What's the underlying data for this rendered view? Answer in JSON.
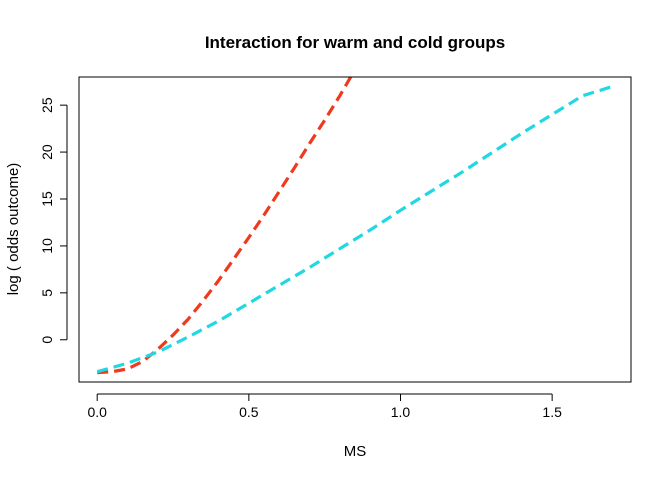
{
  "chart_data": {
    "type": "line",
    "title": "Interaction for warm and cold groups",
    "xlabel": "MS",
    "ylabel": "log ( odds outcome)",
    "xlim": [
      -0.06,
      1.76
    ],
    "ylim": [
      -4.5,
      28
    ],
    "xticks": [
      0.0,
      0.5,
      1.0,
      1.5
    ],
    "xtick_labels": [
      "0.0",
      "0.5",
      "1.0",
      "1.5"
    ],
    "yticks": [
      0,
      5,
      10,
      15,
      20,
      25
    ],
    "ytick_labels": [
      "0",
      "5",
      "10",
      "15",
      "20",
      "25"
    ],
    "grid": false,
    "legend": "none",
    "series": [
      {
        "color": "#EE3A1D",
        "dash": "dashed",
        "x": [
          0.0,
          0.05,
          0.1,
          0.15,
          0.2,
          0.25,
          0.3,
          0.35,
          0.4,
          0.45,
          0.5,
          0.55,
          0.6,
          0.65,
          0.7,
          0.75,
          0.8,
          0.85
        ],
        "y": [
          -3.5,
          -3.4,
          -3.1,
          -2.3,
          -1.0,
          0.5,
          2.2,
          4.2,
          6.3,
          8.6,
          10.9,
          13.3,
          15.8,
          18.3,
          20.9,
          23.4,
          26.0,
          28.8
        ]
      },
      {
        "color": "#1ED8E4",
        "dash": "dashed",
        "x": [
          0.0,
          0.1,
          0.2,
          0.3,
          0.4,
          0.5,
          0.6,
          0.7,
          0.8,
          0.9,
          1.0,
          1.1,
          1.2,
          1.3,
          1.4,
          1.5,
          1.6,
          1.7
        ],
        "y": [
          -3.4,
          -2.5,
          -1.3,
          0.3,
          2.0,
          3.9,
          5.8,
          7.7,
          9.7,
          11.7,
          13.8,
          15.8,
          17.8,
          19.9,
          22.0,
          24.0,
          26.0,
          27.0
        ]
      }
    ]
  }
}
